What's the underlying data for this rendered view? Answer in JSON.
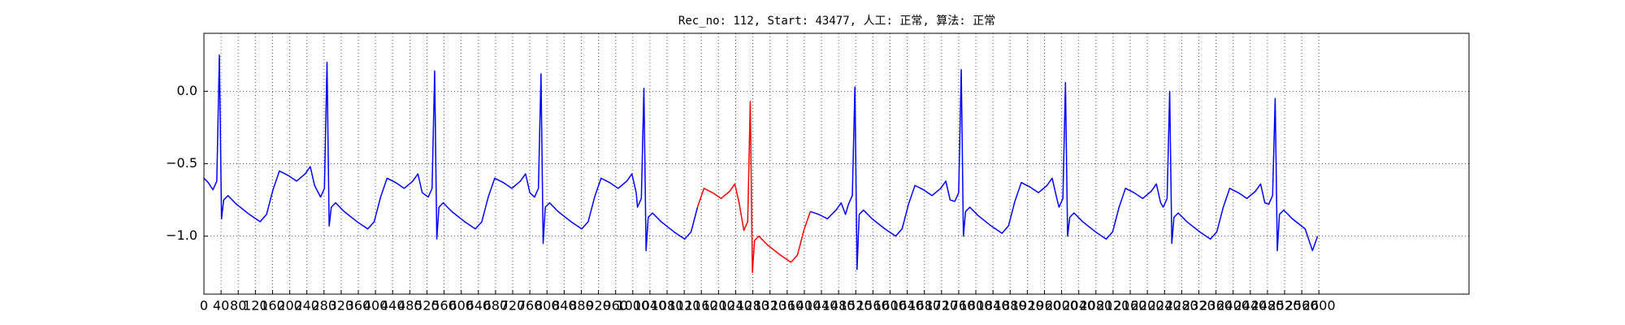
{
  "chart_data": {
    "type": "line",
    "title": "Rec_no: 112, Start: 43477, 人工: 正常, 算法: 正常",
    "xlim": [
      0,
      2950
    ],
    "ylim": [
      -1.4,
      0.4
    ],
    "xticks": [
      0,
      40,
      80,
      120,
      160,
      200,
      240,
      280,
      320,
      360,
      400,
      440,
      480,
      520,
      560,
      600,
      640,
      680,
      720,
      760,
      800,
      840,
      880,
      920,
      960,
      1000,
      1040,
      1080,
      1120,
      1160,
      1200,
      1240,
      1280,
      1320,
      1360,
      1400,
      1440,
      1480,
      1520,
      1560,
      1600,
      1640,
      1680,
      1720,
      1760,
      1800,
      1840,
      1880,
      1920,
      1960,
      2000,
      2040,
      2080,
      2120,
      2160,
      2200,
      2240,
      2280,
      2320,
      2360,
      2400,
      2440,
      2480,
      2520,
      2560,
      2600
    ],
    "yticks": [
      {
        "value": -1.0,
        "label": "−1.0"
      },
      {
        "value": -0.5,
        "label": "−0.5"
      },
      {
        "value": 0.0,
        "label": "0.0"
      }
    ],
    "grid": true,
    "series": [
      {
        "color": "#0000ff",
        "x": [
          0,
          10,
          21,
          30,
          36,
          41,
          46,
          56,
          76,
          106,
          131,
          146,
          161,
          176,
          196,
          216,
          236,
          248,
          258,
          272,
          281,
          287,
          292,
          297,
          307,
          327,
          357,
          382,
          397,
          412,
          427,
          447,
          467,
          487,
          499,
          509,
          523,
          532,
          538,
          543,
          548,
          558,
          578,
          608,
          633,
          648,
          663,
          678,
          698,
          718,
          738,
          750,
          760,
          771,
          780,
          786,
          791,
          796,
          806,
          826,
          856,
          881,
          896,
          911,
          926,
          946,
          966,
          986,
          998,
          1008,
          1011,
          1020,
          1026,
          1031,
          1036,
          1046,
          1066,
          1096,
          1121,
          1136,
          1151,
          1274,
          1414,
          1434,
          1454,
          1474,
          1486,
          1496,
          1503,
          1512,
          1518,
          1523,
          1528,
          1538,
          1558,
          1588,
          1613,
          1628,
          1643,
          1658,
          1678,
          1698,
          1718,
          1730,
          1740,
          1751,
          1760,
          1766,
          1771,
          1776,
          1786,
          1806,
          1836,
          1861,
          1876,
          1891,
          1906,
          1926,
          1946,
          1966,
          1978,
          1988,
          1994,
          2003,
          2009,
          2014,
          2019,
          2029,
          2049,
          2079,
          2104,
          2119,
          2134,
          2149,
          2169,
          2189,
          2209,
          2221,
          2231,
          2237,
          2246,
          2252,
          2257,
          2262,
          2272,
          2292,
          2322,
          2347,
          2362,
          2377,
          2392,
          2412,
          2432,
          2452,
          2464,
          2474,
          2483,
          2492,
          2498,
          2503,
          2508,
          2518,
          2538,
          2568,
          2585,
          2597
        ],
        "values": [
          -0.6,
          -0.63,
          -0.68,
          -0.62,
          0.25,
          -0.88,
          -0.75,
          -0.72,
          -0.78,
          -0.85,
          -0.9,
          -0.85,
          -0.68,
          -0.55,
          -0.58,
          -0.62,
          -0.57,
          -0.52,
          -0.65,
          -0.73,
          -0.67,
          0.2,
          -0.93,
          -0.8,
          -0.77,
          -0.83,
          -0.9,
          -0.95,
          -0.9,
          -0.73,
          -0.6,
          -0.63,
          -0.67,
          -0.62,
          -0.57,
          -0.7,
          -0.73,
          -0.67,
          0.14,
          -1.02,
          -0.8,
          -0.77,
          -0.83,
          -0.9,
          -0.95,
          -0.9,
          -0.73,
          -0.6,
          -0.63,
          -0.67,
          -0.62,
          -0.57,
          -0.7,
          -0.73,
          -0.67,
          0.12,
          -1.05,
          -0.8,
          -0.77,
          -0.83,
          -0.9,
          -0.95,
          -0.9,
          -0.73,
          -0.6,
          -0.63,
          -0.67,
          -0.62,
          -0.57,
          -0.7,
          -0.8,
          -0.74,
          0.02,
          -1.1,
          -0.87,
          -0.84,
          -0.9,
          -0.97,
          -1.02,
          -0.97,
          -0.8,
          null,
          -0.83,
          -0.85,
          -0.88,
          -0.82,
          -0.77,
          -0.85,
          -0.78,
          -0.72,
          0.03,
          -1.23,
          -0.85,
          -0.82,
          -0.88,
          -0.95,
          -1.0,
          -0.95,
          -0.78,
          -0.65,
          -0.68,
          -0.72,
          -0.67,
          -0.62,
          -0.75,
          -0.76,
          -0.7,
          0.15,
          -1.0,
          -0.83,
          -0.8,
          -0.86,
          -0.93,
          -0.98,
          -0.93,
          -0.76,
          -0.63,
          -0.66,
          -0.7,
          -0.65,
          -0.6,
          -0.73,
          -0.8,
          -0.74,
          0.06,
          -1.0,
          -0.87,
          -0.84,
          -0.9,
          -0.97,
          -1.02,
          -0.97,
          -0.8,
          -0.67,
          -0.7,
          -0.74,
          -0.69,
          -0.64,
          -0.77,
          -0.8,
          -0.74,
          0.0,
          -1.05,
          -0.87,
          -0.84,
          -0.9,
          -0.97,
          -1.02,
          -0.97,
          -0.8,
          -0.67,
          -0.7,
          -0.74,
          -0.69,
          -0.64,
          -0.77,
          -0.78,
          -0.72,
          -0.05,
          -1.1,
          -0.85,
          -0.82,
          -0.88,
          -0.95,
          -1.1,
          -1.0
        ]
      },
      {
        "color": "#ff0000",
        "x": [
          1151,
          1166,
          1186,
          1206,
          1226,
          1238,
          1248,
          1259,
          1268,
          1274,
          1279,
          1284,
          1294,
          1314,
          1344,
          1369,
          1384,
          1399,
          1414
        ],
        "values": [
          -0.8,
          -0.67,
          -0.7,
          -0.74,
          -0.69,
          -0.64,
          -0.77,
          -0.96,
          -0.9,
          -0.07,
          -1.25,
          -1.03,
          -1.0,
          -1.06,
          -1.13,
          -1.18,
          -1.13,
          -0.96,
          -0.83
        ]
      }
    ]
  }
}
